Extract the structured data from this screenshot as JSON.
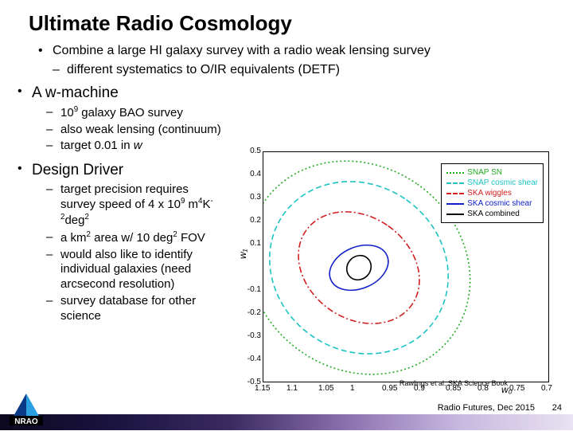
{
  "title": "Ultimate Radio Cosmology",
  "intro_bullet": "Combine a large HI galaxy survey with a radio weak lensing survey",
  "intro_sub": "different systematics to O/IR equivalents (DETF)",
  "sections": {
    "wmachine": {
      "heading": "A w-machine",
      "items": [
        "10⁹ galaxy BAO survey",
        "also weak lensing (continuum)",
        "target 0.01 in w"
      ],
      "items_html": [
        "10<sup>9</sup> galaxy BAO survey",
        "also weak lensing (continuum)",
        "target 0.01 in <span class='italic'>w</span>"
      ]
    },
    "design": {
      "heading": "Design Driver",
      "items_html": [
        "target precision requires survey speed of 4 x 10<sup>9</sup> m<sup>4</sup>K<sup>-2</sup>deg<sup>2</sup>",
        "a km<sup>2</sup> area w/ 10 deg<sup>2</sup> FOV",
        "would also like to identify individual galaxies (need arcsecond resolution)",
        "survey database for other science"
      ]
    }
  },
  "chart": {
    "type": "scatter-ellipses",
    "xlabel": "w₀",
    "ylabel": "w₁",
    "xlim": [
      -1.15,
      -0.7
    ],
    "xticks": [
      -1.15,
      -1.1,
      -1.05,
      -1.0,
      -0.95,
      -0.9,
      -0.85,
      -0.8,
      -0.75,
      -0.7
    ],
    "xtick_labels": [
      "1.15",
      "1.1",
      "1.05",
      "1",
      "0.95",
      "0.9",
      "0.85",
      "0.8",
      "0.75",
      "0.7"
    ],
    "ylim": [
      -0.5,
      0.5
    ],
    "yticks": [
      -0.5,
      -0.4,
      -0.3,
      -0.2,
      -0.1,
      0.1,
      0.2,
      0.3,
      0.4,
      0.5
    ],
    "ytick_labels": [
      "-0.5",
      "-0.4",
      "-0.3",
      "-0.2",
      "-0.1",
      "0.1",
      "0.2",
      "0.3",
      "0.4",
      "0.5"
    ],
    "background_color": "#ffffff",
    "border_color": "#000000",
    "tick_fontsize": 10,
    "label_fontsize": 12,
    "legend_fontsize": 10,
    "legend_border": "#000000",
    "legend_position": "top-right",
    "series": [
      {
        "label": "SNAP SN",
        "color": "#22aa22",
        "dash": "dotted",
        "ellipse": {
          "cx": -1.0,
          "cy": 0.0,
          "rx": 0.16,
          "ry": 0.5,
          "angle_deg": -55
        }
      },
      {
        "label": "SNAP cosmic shear",
        "color": "#1ec3c3",
        "dash": "dashed",
        "ellipse": {
          "cx": -1.0,
          "cy": 0.0,
          "rx": 0.13,
          "ry": 0.4,
          "angle_deg": -55
        }
      },
      {
        "label": "SKA wiggles",
        "color": "#d02020",
        "dash": "dash-dot",
        "ellipse": {
          "cx": -1.0,
          "cy": 0.0,
          "rx": 0.08,
          "ry": 0.28,
          "angle_deg": -55
        }
      },
      {
        "label": "SKA cosmic shear",
        "color": "#1020c8",
        "dash": "solid",
        "ellipse": {
          "cx": -1.0,
          "cy": 0.0,
          "rx": 0.048,
          "ry": 0.09,
          "angle_deg": -23
        }
      },
      {
        "label": "SKA combined",
        "color": "#000000",
        "dash": "solid",
        "ellipse": {
          "cx": -1.0,
          "cy": 0.0,
          "rx": 0.02,
          "ry": 0.05,
          "angle_deg": -45
        }
      }
    ],
    "caption": "Rawlings et al. SKA Science Book"
  },
  "footer": {
    "text": "Radio Futures, Dec 2015",
    "page": "24",
    "logo_text": "NRAO",
    "logo_colors": {
      "triangle_left": "#0a3a86",
      "triangle_right": "#2aa0e0",
      "band": "#000000",
      "text": "#ffffff"
    }
  }
}
